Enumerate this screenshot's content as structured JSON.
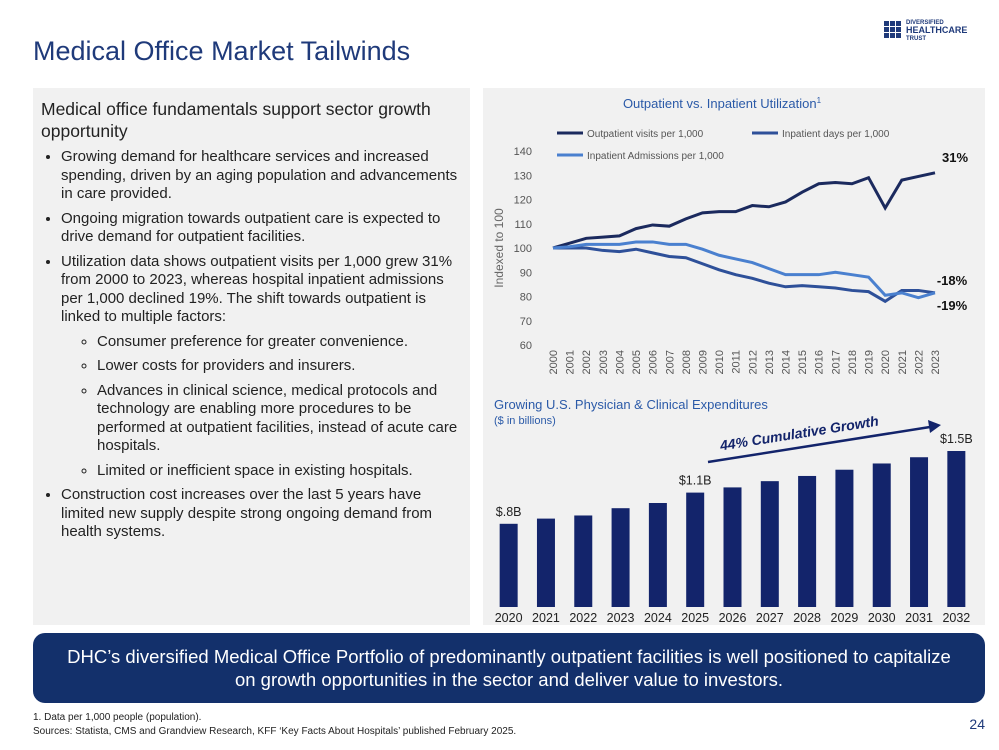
{
  "header": {
    "title": "Medical Office Market Tailwinds",
    "logo": [
      "DIVERSIFIED",
      "HEALTHCARE",
      "TRUST"
    ]
  },
  "left_panel": {
    "heading": "Medical office fundamentals support sector growth opportunity",
    "bullets": [
      {
        "text": "Growing demand for healthcare services and increased spending, driven by an aging population and advancements in care provided."
      },
      {
        "text": "Ongoing migration towards outpatient care is expected to drive demand for outpatient facilities."
      },
      {
        "text": "Utilization data shows outpatient visits per 1,000 grew 31% from 2000 to 2023, whereas hospital inpatient admissions per 1,000 declined 19%. The shift towards outpatient is linked to multiple factors:",
        "sub": [
          "Consumer preference for greater convenience.",
          "Lower costs for providers and insurers.",
          "Advances in clinical science, medical protocols and technology are enabling more procedures to be performed at outpatient facilities, instead of acute care hospitals.",
          "Limited or inefficient space in existing hospitals."
        ]
      },
      {
        "text": "Construction cost increases over the last 5 years have limited new supply despite strong ongoing demand from health systems."
      }
    ]
  },
  "chart_data": [
    {
      "type": "line",
      "title": "Outpatient vs. Inpatient Utilization",
      "title_note": "1",
      "y_label": "Indexed to 100",
      "categories": [
        "2000",
        "2001",
        "2002",
        "2003",
        "2004",
        "2005",
        "2006",
        "2007",
        "2008",
        "2009",
        "2010",
        "2011",
        "2012",
        "2013",
        "2014",
        "2015",
        "2016",
        "2017",
        "2018",
        "2019",
        "2020",
        "2021",
        "2022",
        "2023"
      ],
      "series": [
        {
          "name": "Outpatient visits per 1,000",
          "color": "#1b2a5e",
          "values": [
            100,
            102,
            104,
            104.5,
            105,
            108,
            109.5,
            109,
            112,
            114.5,
            115,
            115,
            117.5,
            117,
            119,
            123,
            126.5,
            127,
            126.5,
            129,
            116.5,
            128,
            129.5,
            131
          ]
        },
        {
          "name": "Inpatient days per 1,000",
          "color": "#2e5099",
          "values": [
            100,
            100,
            100,
            99,
            98.5,
            99.5,
            98,
            96.5,
            96,
            93.5,
            91,
            89,
            87.5,
            85.5,
            84,
            84.5,
            84,
            83.5,
            82.5,
            82,
            78,
            82.5,
            82.5,
            81.5
          ]
        },
        {
          "name": "Inpatient Admissions per 1,000",
          "color": "#4a80cf",
          "values": [
            100,
            100.5,
            101.5,
            101.5,
            101.5,
            102.5,
            102.5,
            101.5,
            101.5,
            99.5,
            97,
            95.5,
            94,
            91.5,
            89,
            89,
            89,
            90,
            89,
            88,
            80.5,
            81.5,
            79.5,
            81.5
          ]
        }
      ],
      "ylim": [
        60,
        140
      ],
      "yticks": [
        60,
        70,
        80,
        90,
        100,
        110,
        120,
        130,
        140
      ],
      "annotations": [
        "31%",
        "-18%",
        "-19%"
      ]
    },
    {
      "type": "bar",
      "title": "Growing U.S. Physician & Clinical Expenditures",
      "subtitle": "($ in billions)",
      "color": "#13246b",
      "categories": [
        "2020",
        "2021",
        "2022",
        "2023",
        "2024",
        "2025",
        "2026",
        "2027",
        "2028",
        "2029",
        "2030",
        "2031",
        "2032"
      ],
      "values": [
        0.8,
        0.85,
        0.88,
        0.95,
        1.0,
        1.1,
        1.15,
        1.21,
        1.26,
        1.32,
        1.38,
        1.44,
        1.5
      ],
      "value_labels": [
        "$.8B",
        null,
        null,
        null,
        null,
        "$1.1B",
        null,
        null,
        null,
        null,
        null,
        null,
        "$1.5B"
      ],
      "annotation": "44% Cumulative Growth"
    }
  ],
  "banner": "DHC’s diversified Medical Office Portfolio of predominantly outpatient facilities is well positioned to capitalize on growth opportunities in the sector and deliver value to investors.",
  "footnotes": [
    "1. Data per 1,000 people (population).",
    "Sources: Statista, CMS and Grandview Research, KFF ‘Key Facts About Hospitals’ published February 2025."
  ],
  "page_number": "24"
}
